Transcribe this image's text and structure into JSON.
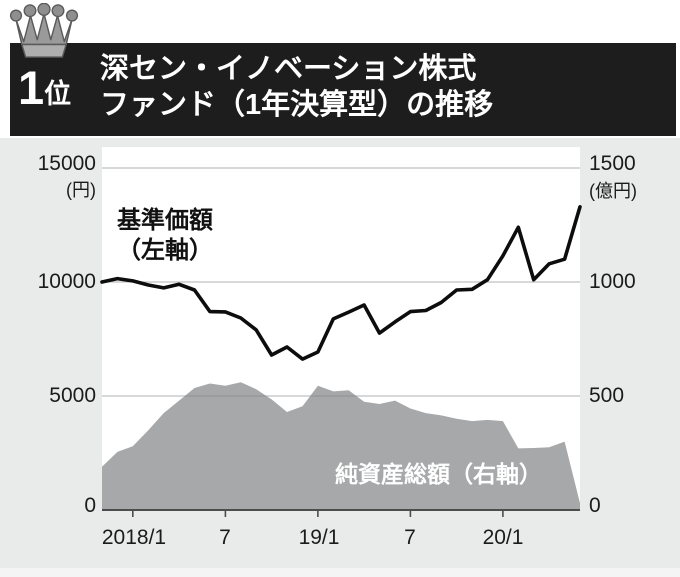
{
  "header": {
    "rank_number": "1",
    "rank_suffix": "位",
    "title_line1": "深セン・イノベーション株式",
    "title_line2": "ファンド（1年決算型）の推移"
  },
  "chart": {
    "left_axis": {
      "unit": "(円)",
      "ticks": [
        "15000",
        "10000",
        "5000",
        "0"
      ]
    },
    "right_axis": {
      "unit": "(億円)",
      "ticks": [
        "1500",
        "1000",
        "500",
        "0"
      ]
    },
    "x_axis": {
      "ticks": [
        "2018/1",
        "7",
        "19/1",
        "7",
        "20/1"
      ]
    },
    "series_labels": {
      "line_label_line1": "基準価額",
      "line_label_line2": "（左軸）",
      "area_label": "純資産総額（右軸）"
    }
  },
  "chart_data": {
    "type": "line",
    "title": "深セン・イノベーション株式ファンド（1年決算型）の推移",
    "x": [
      "2017/11",
      "2017/12",
      "2018/1",
      "2018/2",
      "2018/3",
      "2018/4",
      "2018/5",
      "2018/6",
      "2018/7",
      "2018/8",
      "2018/9",
      "2018/10",
      "2018/11",
      "2018/12",
      "2019/1",
      "2019/2",
      "2019/3",
      "2019/4",
      "2019/5",
      "2019/6",
      "2019/7",
      "2019/8",
      "2019/9",
      "2019/10",
      "2019/11",
      "2019/12",
      "2020/1",
      "2020/2",
      "2020/3",
      "2020/4",
      "2020/5",
      "2020/6"
    ],
    "series": [
      {
        "name": "基準価額（左軸）",
        "type": "line",
        "axis": "left",
        "unit": "円",
        "values": [
          10000,
          10150,
          10050,
          9870,
          9740,
          9900,
          9650,
          8700,
          8690,
          8420,
          7900,
          6800,
          7150,
          6620,
          6930,
          8380,
          8680,
          8990,
          7760,
          8250,
          8700,
          8750,
          9100,
          9650,
          9680,
          10100,
          11150,
          12400,
          10100,
          10800,
          11000,
          13300
        ]
      },
      {
        "name": "純資産総額（右軸）",
        "type": "area",
        "axis": "right",
        "unit": "億円",
        "values": [
          190,
          255,
          280,
          350,
          425,
          480,
          535,
          555,
          545,
          560,
          530,
          485,
          430,
          455,
          545,
          520,
          525,
          475,
          465,
          480,
          445,
          425,
          415,
          400,
          390,
          395,
          390,
          270,
          272,
          275,
          300,
          30
        ]
      }
    ],
    "left_ylim": [
      0,
      15000
    ],
    "right_ylim": [
      0,
      1500
    ],
    "left_tick_step": 5000,
    "x_tick_labels": [
      "2018/1",
      "7",
      "19/1",
      "7",
      "20/1"
    ],
    "x_tick_indices": [
      2,
      8,
      14,
      20,
      26
    ],
    "grid": true,
    "legend_position": "inside"
  },
  "colors": {
    "header_bg": "#1d1d1d",
    "header_text": "#ffffff",
    "page_band_bg": "#e9eaea",
    "plot_bg": "#ffffff",
    "line_series": "#0d0d0d",
    "area_series": "#a6a8a9",
    "gridline": "#808488",
    "axis_line": "#4c4c4c",
    "crown_gray": "#9a9a9a"
  }
}
